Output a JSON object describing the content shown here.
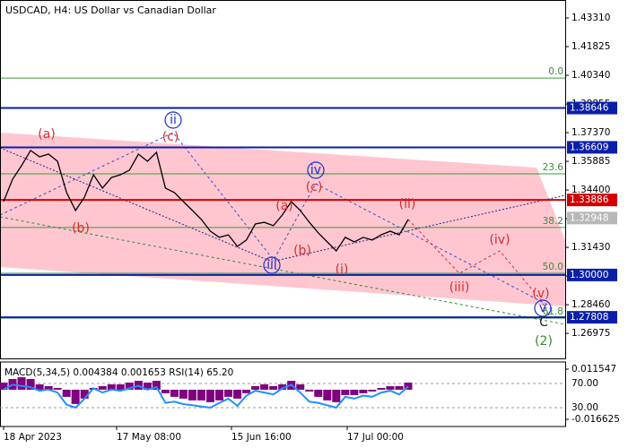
{
  "chart_data": {
    "type": "line",
    "title": "USDCAD, H4:  US Dollar vs Canadian Dollar",
    "color": "#000000",
    "values": [
      1.338,
      1.3496,
      1.3566,
      1.3645,
      1.3612,
      1.3626,
      1.3589,
      1.3427,
      1.3334,
      1.3403,
      1.3519,
      1.345,
      1.3505,
      1.3519,
      1.3543,
      1.3626,
      1.3589,
      1.3635,
      1.345,
      1.3427,
      1.338,
      1.3334,
      1.3287,
      1.3227,
      1.3195,
      1.3208,
      1.3148,
      1.3181,
      1.3264,
      1.3273,
      1.3255,
      1.3311,
      1.338,
      1.3334,
      1.3273,
      1.3218,
      1.3171,
      1.3125,
      1.3195,
      1.3171,
      1.3195,
      1.3181,
      1.3208,
      1.3227,
      1.3208,
      1.3287
    ],
    "ylim": [
      1.2568,
      1.4424
    ],
    "yticks": [
      {
        "value": 1.4331,
        "label": "1.43310"
      },
      {
        "value": 1.41825,
        "label": "1.41825"
      },
      {
        "value": 1.4034,
        "label": "1.40340"
      },
      {
        "value": 1.38855,
        "label": "1.38855"
      },
      {
        "value": 1.3737,
        "label": "1.37370"
      },
      {
        "value": 1.35885,
        "label": "1.35885"
      },
      {
        "value": 1.344,
        "label": "1.34400"
      },
      {
        "value": 1.32915,
        "label": "1.32915"
      },
      {
        "value": 1.3143,
        "label": "1.31430"
      },
      {
        "value": 1.29945,
        "label": "1.29945"
      },
      {
        "value": 1.2846,
        "label": "1.28460"
      },
      {
        "value": 1.26975,
        "label": "1.26975"
      }
    ],
    "levels": [
      {
        "value": 1.38646,
        "color": "#0a1fa8",
        "width": 2
      },
      {
        "value": 1.36609,
        "color": "#0a1fa8",
        "width": 2
      },
      {
        "value": 1.33886,
        "color": "#d40000",
        "width": 2
      },
      {
        "value": 1.32948,
        "color": "#b8b8b8",
        "width": 0
      },
      {
        "value": 1.3,
        "label": "1.30000",
        "color": "#0a1fa8",
        "width": 2
      },
      {
        "value": 1.27808,
        "color": "#0a1fa8",
        "width": 2
      }
    ],
    "fibonacci": [
      {
        "ratio": "0.0",
        "value": 1.402
      },
      {
        "ratio": "23.6",
        "value": 1.3524
      },
      {
        "ratio": "38.2",
        "value": 1.3246
      },
      {
        "ratio": "50.0",
        "value": 1.3009
      },
      {
        "ratio": "61.8",
        "value": 1.2777
      }
    ],
    "waves": [
      {
        "text": "(a)",
        "color": "#d32f2f"
      },
      {
        "text": "(b)",
        "color": "#d32f2f"
      },
      {
        "text": "(c)",
        "color": "#d32f2f"
      },
      {
        "text": "ii",
        "color": "#1a2fd0",
        "circled": true
      },
      {
        "text": "iii",
        "color": "#1a2fd0",
        "circled": true
      },
      {
        "text": "(a)",
        "color": "#d32f2f"
      },
      {
        "text": "(b)",
        "color": "#d32f2f"
      },
      {
        "text": "(c)",
        "color": "#d32f2f"
      },
      {
        "text": "iv",
        "color": "#1a2fd0",
        "circled": true
      },
      {
        "text": "(i)",
        "color": "#d32f2f"
      },
      {
        "text": "(ii)",
        "color": "#d32f2f"
      },
      {
        "text": "(iii)",
        "color": "#d32f2f"
      },
      {
        "text": "(iv)",
        "color": "#d32f2f"
      },
      {
        "text": "(v)",
        "color": "#d32f2f"
      },
      {
        "text": "v",
        "color": "#1a2fd0",
        "circled": true
      },
      {
        "text": "C",
        "color": "#222222"
      },
      {
        "text": "(2)",
        "color": "#2e8b2e"
      }
    ],
    "x_labels": [
      "18 Apr 2023",
      "17 May 08:00",
      "15 Jun 16:00",
      "17 Jul 00:00"
    ],
    "indicator": {
      "title": "MACD(5,34,5) 0.004384 0.001653 RSI(14) 65.20",
      "macd_color": "#800080",
      "rsi_color": "#1e90ff",
      "macd": [
        0.004,
        0.006,
        0.007,
        0.006,
        0.003,
        0.002,
        0.001,
        -0.004,
        -0.008,
        -0.005,
        0.001,
        0.002,
        0.003,
        0.003,
        0.004,
        0.005,
        0.004,
        0.005,
        -0.002,
        -0.004,
        -0.005,
        -0.006,
        -0.006,
        -0.007,
        -0.006,
        -0.004,
        -0.005,
        -0.002,
        0.002,
        0.003,
        0.002,
        0.003,
        0.005,
        0.003,
        -0.001,
        -0.004,
        -0.006,
        -0.007,
        -0.003,
        -0.003,
        -0.002,
        -0.001,
        0.001,
        0.002,
        0.002,
        0.004
      ],
      "rsi": [
        60,
        68,
        66,
        64,
        58,
        60,
        55,
        35,
        30,
        45,
        62,
        55,
        60,
        58,
        62,
        66,
        60,
        64,
        38,
        40,
        36,
        34,
        32,
        30,
        38,
        45,
        33,
        50,
        58,
        55,
        52,
        62,
        68,
        55,
        40,
        38,
        34,
        30,
        48,
        45,
        50,
        48,
        55,
        58,
        52,
        65
      ],
      "macd_lim": [
        -0.020649,
        0.015571
      ],
      "macd_ticks": [
        0.011547,
        -0.016625
      ],
      "rsi_lim": [
        -1.1,
        105.6
      ],
      "rsi_ticks": [
        {
          "value": 70,
          "label": "70.00"
        },
        {
          "value": 30,
          "label": "30.00"
        }
      ]
    }
  }
}
